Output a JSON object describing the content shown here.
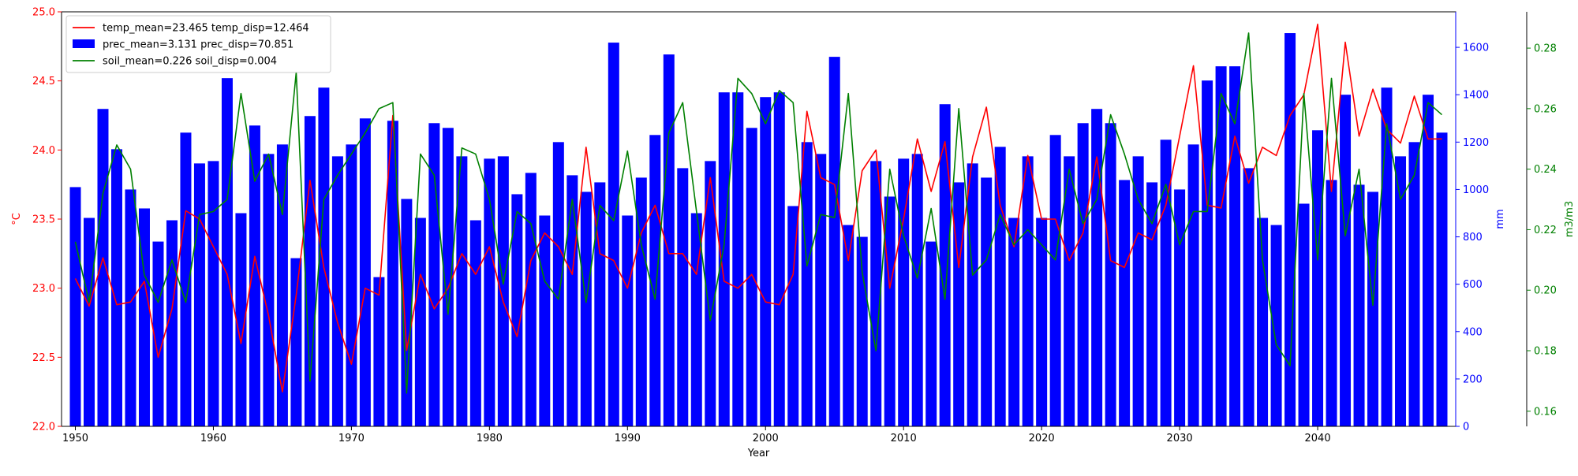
{
  "chart_data": {
    "type": "bar",
    "title": "",
    "xlabel": "Year",
    "xlim": [
      1949,
      2050
    ],
    "x_ticks": [
      1950,
      1960,
      1970,
      1980,
      1990,
      2000,
      2010,
      2020,
      2030,
      2040
    ],
    "legend": {
      "placement": "top-left"
    },
    "grid": false,
    "axes": {
      "temp": {
        "label": "°C",
        "color": "#ff0000",
        "lim": [
          22.0,
          25.0
        ],
        "ticks": [
          22.0,
          22.5,
          23.0,
          23.5,
          24.0,
          24.5,
          25.0
        ]
      },
      "prec": {
        "label": "mm",
        "color": "#0000ff",
        "lim": [
          0,
          1750
        ],
        "ticks": [
          0,
          200,
          400,
          600,
          800,
          1000,
          1200,
          1400,
          1600
        ]
      },
      "soil": {
        "label": "m3/m3",
        "color": "#008000",
        "lim": [
          0.155,
          0.292
        ],
        "ticks": [
          0.16,
          0.18,
          0.2,
          0.22,
          0.24,
          0.26,
          0.28
        ]
      }
    },
    "x": [
      1950,
      1951,
      1952,
      1953,
      1954,
      1955,
      1956,
      1957,
      1958,
      1959,
      1960,
      1961,
      1962,
      1963,
      1964,
      1965,
      1966,
      1967,
      1968,
      1969,
      1970,
      1971,
      1972,
      1973,
      1974,
      1975,
      1976,
      1977,
      1978,
      1979,
      1980,
      1981,
      1982,
      1983,
      1984,
      1985,
      1986,
      1987,
      1988,
      1989,
      1990,
      1991,
      1992,
      1993,
      1994,
      1995,
      1996,
      1997,
      1998,
      1999,
      2000,
      2001,
      2002,
      2003,
      2004,
      2005,
      2006,
      2007,
      2008,
      2009,
      2010,
      2011,
      2012,
      2013,
      2014,
      2015,
      2016,
      2017,
      2018,
      2019,
      2020,
      2021,
      2022,
      2023,
      2024,
      2025,
      2026,
      2027,
      2028,
      2029,
      2030,
      2031,
      2032,
      2033,
      2034,
      2035,
      2036,
      2037,
      2038,
      2039,
      2040,
      2041,
      2042,
      2043,
      2044,
      2045,
      2046,
      2047,
      2048,
      2049
    ],
    "series": [
      {
        "name": "prec_mean=3.131 prec_disp=70.851",
        "type": "bar",
        "axis": "prec",
        "color": "#0000ff",
        "values": [
          1010,
          880,
          1340,
          1170,
          1000,
          920,
          780,
          870,
          1240,
          1110,
          1120,
          1470,
          900,
          1270,
          1150,
          1190,
          710,
          1310,
          1430,
          1140,
          1190,
          1300,
          630,
          1290,
          960,
          880,
          1280,
          1260,
          1140,
          870,
          1130,
          1140,
          980,
          1070,
          890,
          1200,
          1060,
          990,
          1030,
          1620,
          890,
          1050,
          1230,
          1570,
          1090,
          900,
          1120,
          1410,
          1410,
          1260,
          1390,
          1410,
          930,
          1200,
          1150,
          1560,
          850,
          800,
          1120,
          970,
          1130,
          1150,
          780,
          1360,
          1030,
          1110,
          1050,
          1180,
          880,
          1140,
          880,
          1230,
          1140,
          1280,
          1340,
          1280,
          1040,
          1140,
          1030,
          1210,
          1000,
          1190,
          1460,
          1520,
          1520,
          1090,
          880,
          850,
          1660,
          940,
          1250,
          1040,
          1400,
          1020,
          990,
          1430,
          1140,
          1200,
          1400,
          1240
        ]
      },
      {
        "name": "temp_mean=23.465 temp_disp=12.464",
        "type": "line",
        "axis": "temp",
        "color": "#ff0000",
        "values": [
          23.07,
          22.87,
          23.22,
          22.88,
          22.9,
          23.05,
          22.5,
          22.85,
          23.56,
          23.5,
          23.3,
          23.1,
          22.6,
          23.23,
          22.8,
          22.25,
          22.95,
          23.78,
          23.15,
          22.75,
          22.45,
          23.0,
          22.95,
          24.25,
          22.55,
          23.1,
          22.85,
          23.0,
          23.25,
          23.1,
          23.3,
          22.9,
          22.65,
          23.2,
          23.4,
          23.3,
          23.1,
          24.02,
          23.25,
          23.2,
          23.0,
          23.4,
          23.6,
          23.25,
          23.25,
          23.1,
          23.8,
          23.05,
          23.0,
          23.1,
          22.9,
          22.88,
          23.1,
          24.28,
          23.8,
          23.75,
          23.2,
          23.85,
          24.0,
          23.0,
          23.5,
          24.08,
          23.7,
          24.06,
          23.15,
          23.95,
          24.31,
          23.6,
          23.3,
          23.96,
          23.5,
          23.5,
          23.2,
          23.4,
          23.95,
          23.2,
          23.15,
          23.4,
          23.35,
          23.6,
          24.1,
          24.61,
          23.6,
          23.58,
          24.1,
          23.76,
          24.02,
          23.96,
          24.25,
          24.4,
          24.91,
          23.7,
          24.78,
          24.1,
          24.44,
          24.15,
          24.05,
          24.39,
          24.08,
          24.08
        ]
      },
      {
        "name": "soil_mean=0.226 soil_disp=0.004",
        "type": "line",
        "axis": "soil",
        "color": "#008000",
        "values": [
          0.216,
          0.196,
          0.232,
          0.248,
          0.24,
          0.205,
          0.196,
          0.21,
          0.196,
          0.225,
          0.226,
          0.23,
          0.265,
          0.236,
          0.245,
          0.225,
          0.272,
          0.17,
          0.23,
          0.238,
          0.245,
          0.252,
          0.26,
          0.262,
          0.166,
          0.245,
          0.238,
          0.192,
          0.247,
          0.245,
          0.23,
          0.202,
          0.226,
          0.222,
          0.203,
          0.197,
          0.23,
          0.196,
          0.228,
          0.223,
          0.246,
          0.215,
          0.197,
          0.252,
          0.262,
          0.226,
          0.19,
          0.215,
          0.27,
          0.265,
          0.255,
          0.266,
          0.262,
          0.208,
          0.225,
          0.224,
          0.265,
          0.206,
          0.18,
          0.24,
          0.218,
          0.204,
          0.227,
          0.197,
          0.26,
          0.205,
          0.21,
          0.225,
          0.215,
          0.22,
          0.215,
          0.21,
          0.24,
          0.222,
          0.23,
          0.258,
          0.245,
          0.23,
          0.222,
          0.235,
          0.215,
          0.226,
          0.226,
          0.265,
          0.255,
          0.285,
          0.21,
          0.182,
          0.175,
          0.265,
          0.21,
          0.27,
          0.218,
          0.24,
          0.195,
          0.255,
          0.23,
          0.238,
          0.262,
          0.258
        ]
      }
    ]
  }
}
